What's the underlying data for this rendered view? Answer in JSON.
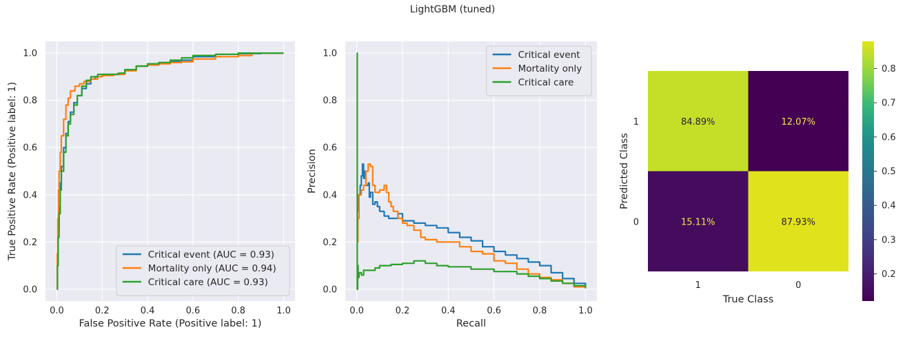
{
  "figure": {
    "title": "LightGBM (tuned)"
  },
  "colors": {
    "axes_bg": "#EAEAF2",
    "grid": "#FFFFFF",
    "text": "#262626",
    "critical_event": "#1f77b4",
    "mortality_only": "#ff7f0e",
    "critical_care": "#2ca02c",
    "heat_low": "#440154",
    "heat_high": "#e0e31b",
    "heat_text_on_dark": "#f5e44c",
    "heat_text_on_light": "#2a1a3a"
  },
  "chart_data": [
    {
      "type": "line",
      "id": "roc",
      "xlabel": "False Positive Rate (Positive label: 1)",
      "ylabel": "True Positive Rate (Positive label: 1)",
      "xlim": [
        -0.05,
        1.05
      ],
      "ylim": [
        -0.05,
        1.05
      ],
      "xticks": [
        "0.0",
        "0.2",
        "0.4",
        "0.6",
        "0.8",
        "1.0"
      ],
      "yticks": [
        "0.0",
        "0.2",
        "0.4",
        "0.6",
        "0.8",
        "1.0"
      ],
      "grid": true,
      "legend_position": "lower-right",
      "series": [
        {
          "name": "Critical event (AUC = 0.93)",
          "color": "#1f77b4",
          "points": [
            [
              0,
              0
            ],
            [
              0.003,
              0.12
            ],
            [
              0.006,
              0.25
            ],
            [
              0.01,
              0.35
            ],
            [
              0.015,
              0.45
            ],
            [
              0.02,
              0.52
            ],
            [
              0.03,
              0.6
            ],
            [
              0.04,
              0.66
            ],
            [
              0.05,
              0.71
            ],
            [
              0.06,
              0.75
            ],
            [
              0.075,
              0.79
            ],
            [
              0.09,
              0.82
            ],
            [
              0.11,
              0.85
            ],
            [
              0.13,
              0.87
            ],
            [
              0.15,
              0.89
            ],
            [
              0.17,
              0.9
            ],
            [
              0.2,
              0.91
            ],
            [
              0.25,
              0.91
            ],
            [
              0.28,
              0.915
            ],
            [
              0.3,
              0.93
            ],
            [
              0.35,
              0.945
            ],
            [
              0.4,
              0.95
            ],
            [
              0.45,
              0.96
            ],
            [
              0.5,
              0.965
            ],
            [
              0.55,
              0.97
            ],
            [
              0.6,
              0.985
            ],
            [
              0.7,
              0.995
            ],
            [
              0.8,
              0.998
            ],
            [
              0.9,
              1.0
            ],
            [
              1.0,
              1.0
            ]
          ]
        },
        {
          "name": "Mortality only (AUC = 0.94)",
          "color": "#ff7f0e",
          "points": [
            [
              0,
              0
            ],
            [
              0.002,
              0.15
            ],
            [
              0.004,
              0.3
            ],
            [
              0.007,
              0.42
            ],
            [
              0.01,
              0.5
            ],
            [
              0.015,
              0.58
            ],
            [
              0.02,
              0.65
            ],
            [
              0.03,
              0.72
            ],
            [
              0.04,
              0.78
            ],
            [
              0.05,
              0.81
            ],
            [
              0.06,
              0.84
            ],
            [
              0.08,
              0.86
            ],
            [
              0.1,
              0.87
            ],
            [
              0.12,
              0.88
            ],
            [
              0.15,
              0.89
            ],
            [
              0.18,
              0.9
            ],
            [
              0.2,
              0.905
            ],
            [
              0.25,
              0.91
            ],
            [
              0.3,
              0.925
            ],
            [
              0.35,
              0.945
            ],
            [
              0.4,
              0.95
            ],
            [
              0.45,
              0.955
            ],
            [
              0.5,
              0.96
            ],
            [
              0.55,
              0.963
            ],
            [
              0.6,
              0.975
            ],
            [
              0.7,
              0.985
            ],
            [
              0.8,
              0.99
            ],
            [
              0.85,
              0.99
            ],
            [
              0.86,
              1.0
            ],
            [
              1.0,
              1.0
            ]
          ]
        },
        {
          "name": "Critical care (AUC = 0.93)",
          "color": "#2ca02c",
          "points": [
            [
              0,
              0
            ],
            [
              0.003,
              0.1
            ],
            [
              0.006,
              0.22
            ],
            [
              0.01,
              0.32
            ],
            [
              0.015,
              0.42
            ],
            [
              0.02,
              0.5
            ],
            [
              0.03,
              0.58
            ],
            [
              0.04,
              0.65
            ],
            [
              0.05,
              0.7
            ],
            [
              0.06,
              0.74
            ],
            [
              0.075,
              0.78
            ],
            [
              0.09,
              0.82
            ],
            [
              0.11,
              0.86
            ],
            [
              0.13,
              0.885
            ],
            [
              0.15,
              0.9
            ],
            [
              0.18,
              0.91
            ],
            [
              0.22,
              0.91
            ],
            [
              0.27,
              0.915
            ],
            [
              0.3,
              0.93
            ],
            [
              0.35,
              0.945
            ],
            [
              0.4,
              0.955
            ],
            [
              0.45,
              0.96
            ],
            [
              0.5,
              0.97
            ],
            [
              0.55,
              0.98
            ],
            [
              0.6,
              0.99
            ],
            [
              0.7,
              0.995
            ],
            [
              0.8,
              1.0
            ],
            [
              1.0,
              1.0
            ]
          ]
        }
      ]
    },
    {
      "type": "line",
      "id": "pr",
      "xlabel": "Recall",
      "ylabel": "Precision",
      "xlim": [
        -0.05,
        1.05
      ],
      "ylim": [
        -0.05,
        1.05
      ],
      "xticks": [
        "0.0",
        "0.2",
        "0.4",
        "0.6",
        "0.8",
        "1.0"
      ],
      "yticks": [
        "0.0",
        "0.2",
        "0.4",
        "0.6",
        "0.8",
        "1.0"
      ],
      "grid": true,
      "legend_position": "upper-right",
      "series": [
        {
          "name": "Critical event",
          "color": "#1f77b4",
          "points": [
            [
              0,
              0.4
            ],
            [
              0.005,
              0.33
            ],
            [
              0.01,
              0.4
            ],
            [
              0.015,
              0.44
            ],
            [
              0.02,
              0.48
            ],
            [
              0.025,
              0.53
            ],
            [
              0.03,
              0.47
            ],
            [
              0.035,
              0.5
            ],
            [
              0.04,
              0.44
            ],
            [
              0.05,
              0.45
            ],
            [
              0.055,
              0.39
            ],
            [
              0.06,
              0.41
            ],
            [
              0.07,
              0.36
            ],
            [
              0.08,
              0.37
            ],
            [
              0.09,
              0.35
            ],
            [
              0.1,
              0.33
            ],
            [
              0.12,
              0.31
            ],
            [
              0.14,
              0.3
            ],
            [
              0.16,
              0.3
            ],
            [
              0.18,
              0.32
            ],
            [
              0.2,
              0.29
            ],
            [
              0.25,
              0.28
            ],
            [
              0.3,
              0.27
            ],
            [
              0.35,
              0.26
            ],
            [
              0.4,
              0.24
            ],
            [
              0.45,
              0.22
            ],
            [
              0.5,
              0.205
            ],
            [
              0.55,
              0.18
            ],
            [
              0.6,
              0.16
            ],
            [
              0.65,
              0.145
            ],
            [
              0.7,
              0.13
            ],
            [
              0.75,
              0.115
            ],
            [
              0.8,
              0.1
            ],
            [
              0.85,
              0.07
            ],
            [
              0.9,
              0.045
            ],
            [
              0.95,
              0.025
            ],
            [
              1.0,
              0.01
            ]
          ]
        },
        {
          "name": "Mortality only",
          "color": "#ff7f0e",
          "points": [
            [
              0,
              0.2
            ],
            [
              0.005,
              0.3
            ],
            [
              0.01,
              0.4
            ],
            [
              0.02,
              0.42
            ],
            [
              0.03,
              0.44
            ],
            [
              0.04,
              0.5
            ],
            [
              0.05,
              0.53
            ],
            [
              0.06,
              0.52
            ],
            [
              0.07,
              0.44
            ],
            [
              0.08,
              0.41
            ],
            [
              0.1,
              0.42
            ],
            [
              0.12,
              0.44
            ],
            [
              0.13,
              0.41
            ],
            [
              0.14,
              0.37
            ],
            [
              0.15,
              0.35
            ],
            [
              0.16,
              0.33
            ],
            [
              0.18,
              0.3
            ],
            [
              0.2,
              0.28
            ],
            [
              0.22,
              0.27
            ],
            [
              0.25,
              0.25
            ],
            [
              0.28,
              0.22
            ],
            [
              0.3,
              0.21
            ],
            [
              0.35,
              0.2
            ],
            [
              0.4,
              0.2
            ],
            [
              0.45,
              0.18
            ],
            [
              0.5,
              0.16
            ],
            [
              0.55,
              0.15
            ],
            [
              0.6,
              0.12
            ],
            [
              0.65,
              0.11
            ],
            [
              0.7,
              0.085
            ],
            [
              0.75,
              0.065
            ],
            [
              0.8,
              0.05
            ],
            [
              0.85,
              0.04
            ],
            [
              0.9,
              0.025
            ],
            [
              0.95,
              0.01
            ],
            [
              1.0,
              0.003
            ]
          ]
        },
        {
          "name": "Critical care",
          "color": "#2ca02c",
          "points": [
            [
              0,
              1.0
            ],
            [
              0.002,
              0.0
            ],
            [
              0.004,
              0.1
            ],
            [
              0.006,
              0.05
            ],
            [
              0.01,
              0.07
            ],
            [
              0.02,
              0.06
            ],
            [
              0.03,
              0.08
            ],
            [
              0.05,
              0.08
            ],
            [
              0.08,
              0.09
            ],
            [
              0.1,
              0.1
            ],
            [
              0.15,
              0.105
            ],
            [
              0.2,
              0.11
            ],
            [
              0.25,
              0.12
            ],
            [
              0.3,
              0.11
            ],
            [
              0.35,
              0.1
            ],
            [
              0.4,
              0.095
            ],
            [
              0.5,
              0.085
            ],
            [
              0.6,
              0.075
            ],
            [
              0.7,
              0.065
            ],
            [
              0.75,
              0.055
            ],
            [
              0.8,
              0.045
            ],
            [
              0.85,
              0.035
            ],
            [
              0.9,
              0.025
            ],
            [
              0.95,
              0.015
            ],
            [
              1.0,
              0.005
            ]
          ]
        }
      ]
    },
    {
      "type": "heatmap",
      "id": "confusion",
      "xlabel": "True Class",
      "ylabel": "Predicted Class",
      "x_categories": [
        "1",
        "0"
      ],
      "y_categories": [
        "1",
        "0"
      ],
      "cells": [
        [
          {
            "value": 0.8489,
            "label": "84.89%"
          },
          {
            "value": 0.1207,
            "label": "12.07%"
          }
        ],
        [
          {
            "value": 0.1511,
            "label": "15.11%"
          },
          {
            "value": 0.8793,
            "label": "87.93%"
          }
        ]
      ],
      "colorbar": {
        "min": 0.1207,
        "max": 0.8793,
        "ticks": [
          0.2,
          0.3,
          0.4,
          0.5,
          0.6,
          0.7,
          0.8
        ],
        "tick_labels": [
          "0.2",
          "0.3",
          "0.4",
          "0.5",
          "0.6",
          "0.7",
          "0.8"
        ]
      }
    }
  ]
}
